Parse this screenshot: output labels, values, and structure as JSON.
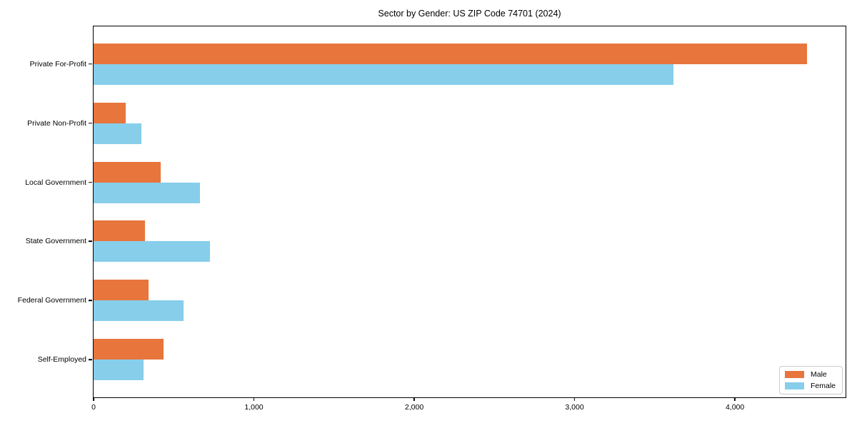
{
  "chart_data": {
    "type": "bar",
    "orientation": "horizontal",
    "title": "Sector by Gender: US ZIP Code 74701 (2024)",
    "categories": [
      "Private For-Profit",
      "Private Non-Profit",
      "Local Government",
      "State Government",
      "Federal Government",
      "Self-Employed"
    ],
    "series": [
      {
        "name": "Male",
        "color": "#E8753C",
        "values": [
          4450,
          200,
          420,
          320,
          345,
          435
        ]
      },
      {
        "name": "Female",
        "color": "#87CEEB",
        "values": [
          3615,
          300,
          665,
          725,
          560,
          310
        ]
      }
    ],
    "xlabel": "",
    "ylabel": "",
    "xlim": [
      0,
      4690
    ],
    "xticks": {
      "values": [
        0,
        1000,
        2000,
        3000,
        4000
      ],
      "labels": [
        "0",
        "1,000",
        "2,000",
        "3,000",
        "4,000"
      ]
    },
    "grid": false,
    "legend": {
      "position": "lower right",
      "entries": [
        "Male",
        "Female"
      ]
    }
  }
}
